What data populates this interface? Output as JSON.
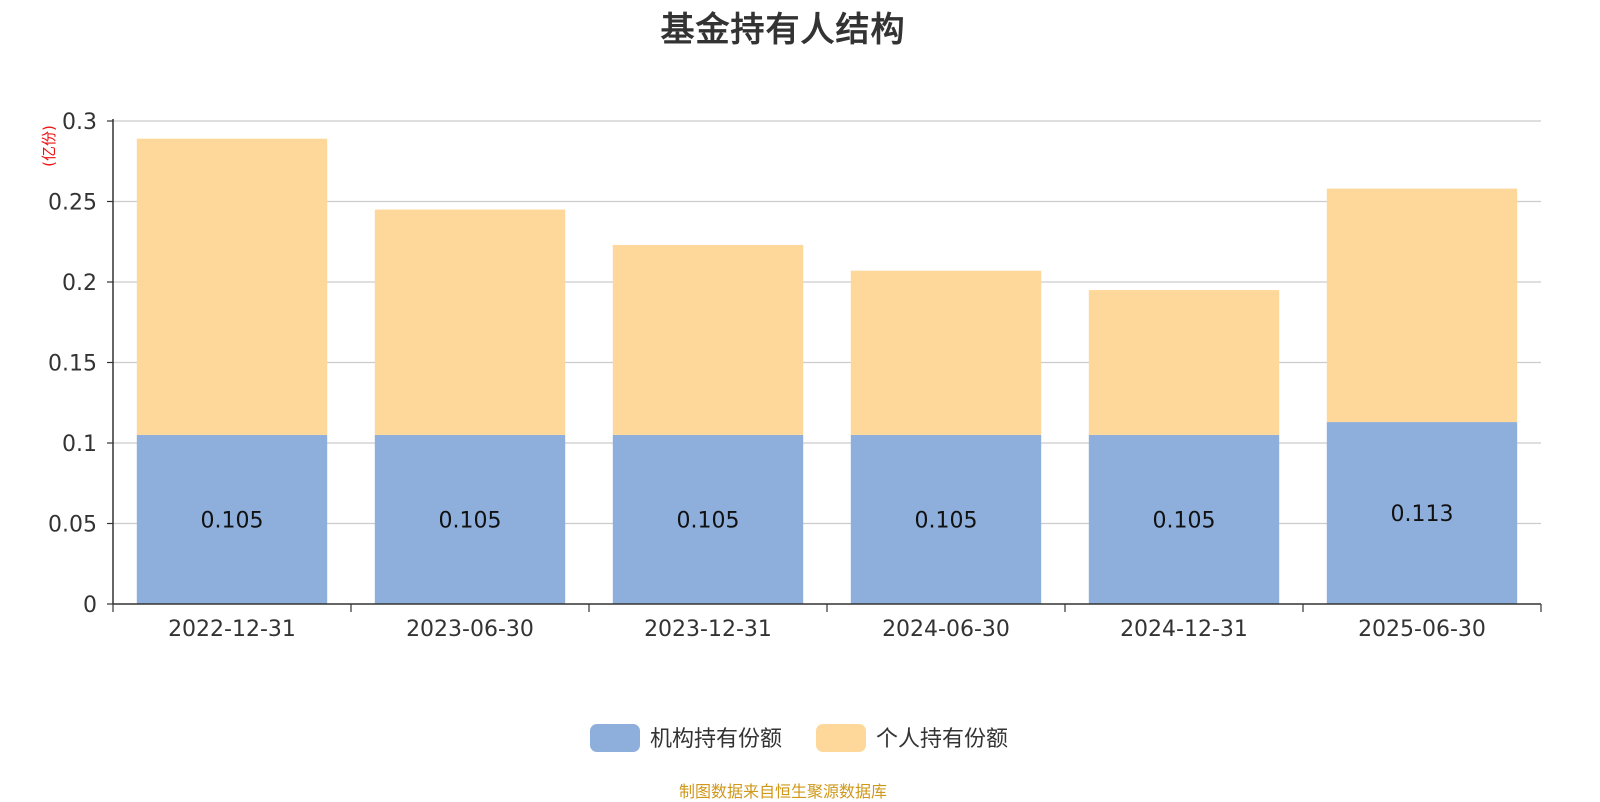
{
  "chart_data": {
    "type": "bar",
    "stacked": true,
    "title": "基金持有人结构",
    "ylabel": "(亿份)",
    "xlabel": "",
    "categories": [
      "2022-12-31",
      "2023-06-30",
      "2023-12-31",
      "2024-06-30",
      "2024-12-31",
      "2025-06-30"
    ],
    "series": [
      {
        "name": "机构持有份额",
        "color": "#8eaedb",
        "values": [
          0.105,
          0.105,
          0.105,
          0.105,
          0.105,
          0.113
        ],
        "data_labels": [
          "0.105",
          "0.105",
          "0.105",
          "0.105",
          "0.105",
          "0.113"
        ]
      },
      {
        "name": "个人持有份额",
        "color": "#fed89b",
        "values": [
          0.184,
          0.14,
          0.118,
          0.102,
          0.09,
          0.145
        ]
      }
    ],
    "ylim": [
      0,
      0.3
    ],
    "yticks": [
      "0",
      "0.05",
      "0.1",
      "0.15",
      "0.2",
      "0.25",
      "0.3"
    ],
    "grid": true,
    "legend_position": "bottom-center"
  },
  "source_note": "制图数据来自恒生聚源数据库"
}
